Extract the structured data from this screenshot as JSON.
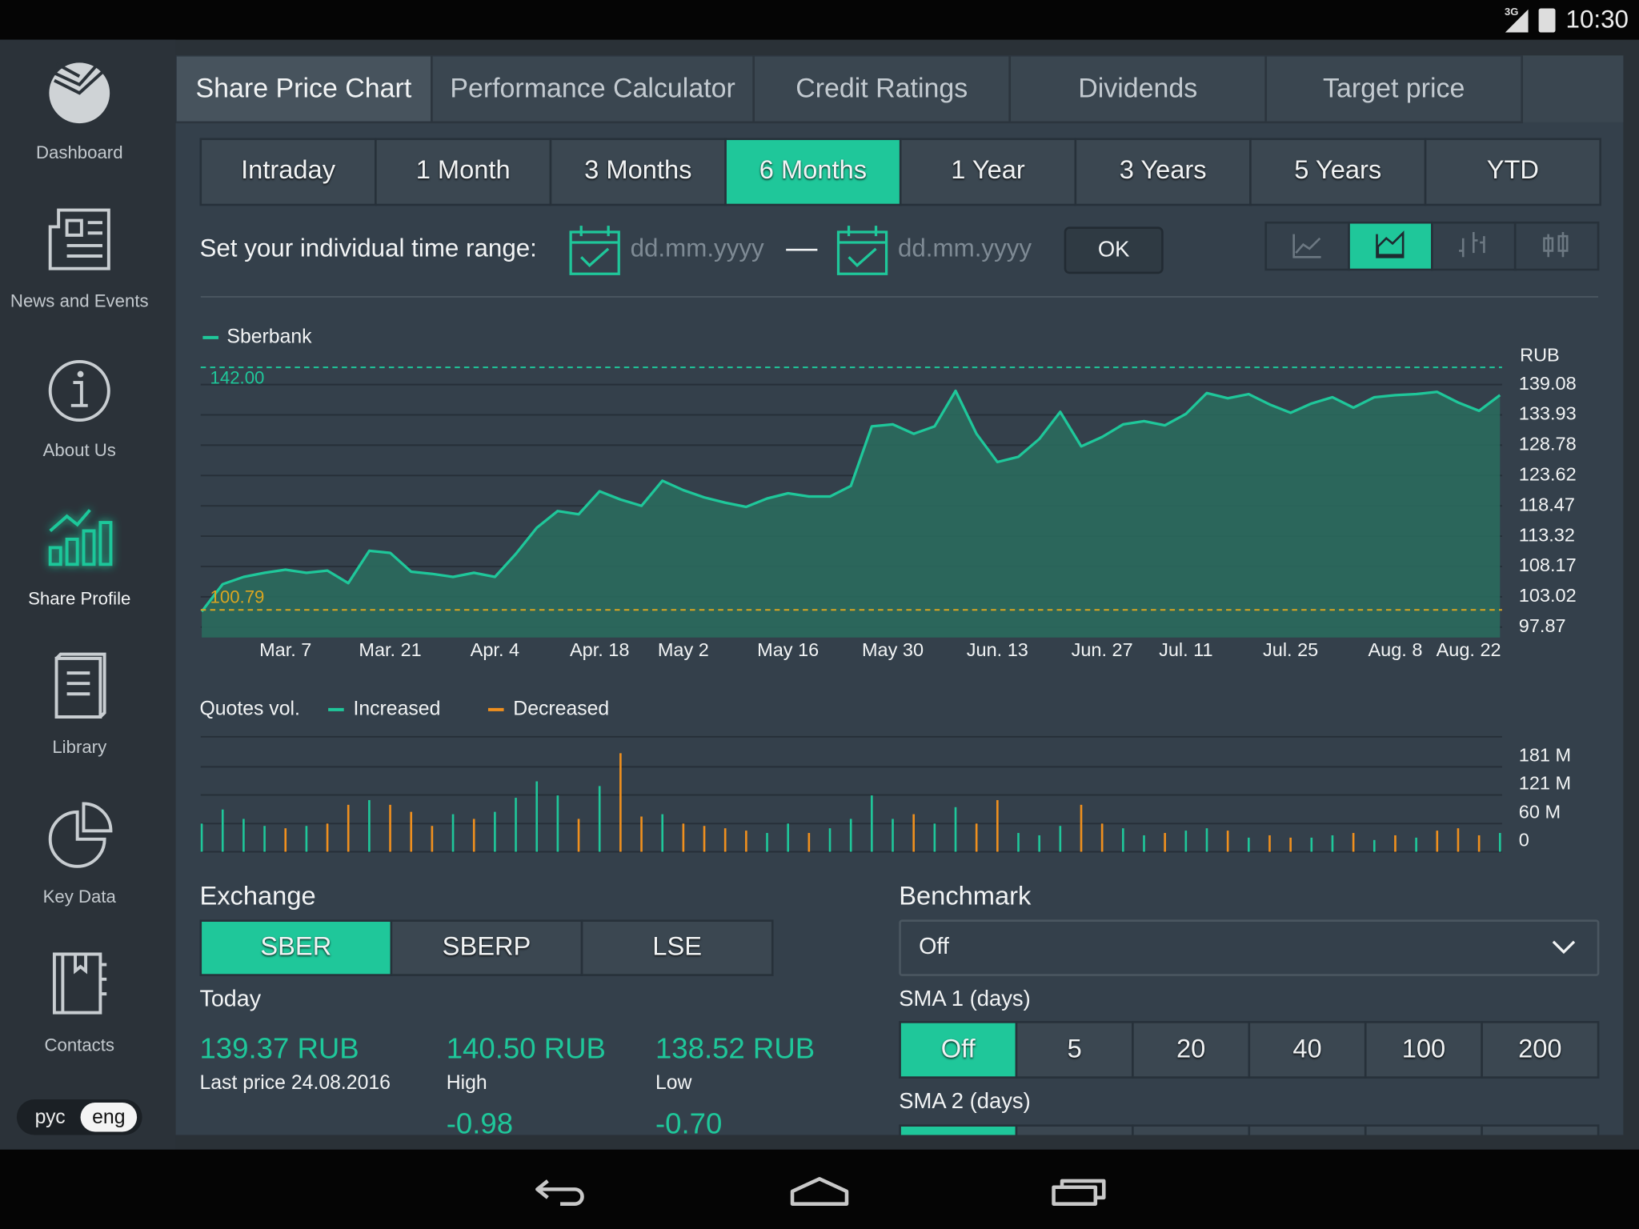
{
  "status_bar": {
    "network": "3G",
    "time": "10:30"
  },
  "sidebar": {
    "items": [
      {
        "label": "Dashboard",
        "active": false
      },
      {
        "label": "News and Events",
        "active": false
      },
      {
        "label": "About Us",
        "active": false
      },
      {
        "label": "Share Profile",
        "active": true
      },
      {
        "label": "Library",
        "active": false
      },
      {
        "label": "Key Data",
        "active": false
      },
      {
        "label": "Contacts",
        "active": false
      }
    ]
  },
  "language": {
    "items": [
      "рус",
      "eng"
    ],
    "selected": 1
  },
  "tabs": {
    "items": [
      "Share Price Chart",
      "Performance Calculator",
      "Credit Ratings",
      "Dividends",
      "Target price"
    ],
    "selected": 0
  },
  "periods": {
    "items": [
      "Intraday",
      "1 Month",
      "3 Months",
      "6 Months",
      "1 Year",
      "3 Years",
      "5 Years",
      "YTD"
    ],
    "selected": 3
  },
  "custom_range": {
    "label": "Set your individual time range:",
    "from_placeholder": "dd.mm.yyyy",
    "to_placeholder": "dd.mm.yyyy",
    "ok": "OK"
  },
  "chart_data": [
    {
      "type": "area",
      "y_unit": "RUB",
      "categories": [
        null,
        null,
        null,
        null,
        "Mar. 7",
        null,
        null,
        null,
        null,
        "Mar. 21",
        null,
        null,
        null,
        null,
        "Apr. 4",
        null,
        null,
        null,
        null,
        "Apr. 18",
        null,
        null,
        null,
        "May 2",
        null,
        null,
        null,
        null,
        "May 16",
        null,
        null,
        null,
        null,
        "May 30",
        null,
        null,
        null,
        null,
        "Jun. 13",
        null,
        null,
        null,
        null,
        "Jun. 27",
        null,
        null,
        null,
        "Jul. 11",
        null,
        null,
        null,
        null,
        "Jul. 25",
        null,
        null,
        null,
        null,
        "Aug. 8",
        null,
        null,
        null,
        "Aug. 22",
        null
      ],
      "series": [
        {
          "name": "Sberbank",
          "color": "#1fc79a",
          "values": [
            100.53,
            105.15,
            106.39,
            107.1,
            107.63,
            107.1,
            107.46,
            105.33,
            110.83,
            110.48,
            107.28,
            106.92,
            106.39,
            107.1,
            106.39,
            110.3,
            114.74,
            117.58,
            117.04,
            120.95,
            119.53,
            118.47,
            122.73,
            121.13,
            119.89,
            119.0,
            118.29,
            119.71,
            120.6,
            120.06,
            120.06,
            121.84,
            131.96,
            132.31,
            130.71,
            131.96,
            138.0,
            130.71,
            125.92,
            126.81,
            129.83,
            134.44,
            128.58,
            130.18,
            132.31,
            132.85,
            132.14,
            134.09,
            137.64,
            136.75,
            137.46,
            135.69,
            134.27,
            135.86,
            136.93,
            135.15,
            136.93,
            137.28,
            137.46,
            137.82,
            136.04,
            134.62,
            137.28
          ]
        }
      ],
      "ylim": [
        96.1,
        142.8
      ],
      "yticks": [
        139.08,
        133.93,
        128.78,
        123.62,
        118.47,
        113.32,
        108.17,
        103.02,
        97.87
      ],
      "grid": true,
      "max_line": {
        "value": 142,
        "label": "142.00",
        "color": "#1fc79a"
      },
      "min_line": {
        "value": 100.79,
        "label": "100.79",
        "color": "#d9a521"
      }
    },
    {
      "type": "bar",
      "title": "Quotes vol.",
      "series": [
        {
          "name": "Increased",
          "color": "#1fc79a",
          "values": [
            60,
            90,
            70,
            55,
            null,
            55,
            null,
            null,
            110,
            null,
            null,
            null,
            80,
            null,
            85,
            115,
            150,
            120,
            null,
            140,
            null,
            null,
            80,
            null,
            null,
            null,
            null,
            40,
            60,
            null,
            50,
            70,
            120,
            70,
            null,
            60,
            95,
            null,
            null,
            40,
            35,
            55,
            null,
            null,
            50,
            35,
            null,
            45,
            50,
            null,
            30,
            null,
            null,
            30,
            35,
            null,
            25,
            null,
            30,
            null,
            null,
            null,
            40
          ]
        },
        {
          "name": "Decreased",
          "color": "#f0901e",
          "values": [
            null,
            null,
            null,
            null,
            50,
            null,
            60,
            100,
            null,
            100,
            85,
            55,
            null,
            70,
            null,
            null,
            null,
            null,
            70,
            null,
            210,
            75,
            null,
            60,
            55,
            50,
            45,
            null,
            null,
            40,
            null,
            null,
            null,
            null,
            80,
            null,
            null,
            60,
            110,
            null,
            null,
            null,
            100,
            60,
            null,
            null,
            40,
            null,
            null,
            45,
            null,
            35,
            30,
            null,
            null,
            40,
            null,
            35,
            null,
            45,
            50,
            35,
            null
          ]
        }
      ],
      "ylim": [
        0,
        245
      ],
      "yticks": [
        {
          "value": 181,
          "label": "181 M"
        },
        {
          "value": 121,
          "label": "121 M"
        },
        {
          "value": 60,
          "label": "60 M"
        },
        0
      ],
      "grid": true
    }
  ],
  "exchange": {
    "title": "Exchange",
    "items": [
      "SBER",
      "SBERP",
      "LSE"
    ],
    "selected": 0
  },
  "today": {
    "title": "Today",
    "stats": [
      {
        "value": "139.37 RUB",
        "label": "Last price 24.08.2016"
      },
      {
        "value": "140.50 RUB",
        "label": "High",
        "change": "-0.98"
      },
      {
        "value": "138.52 RUB",
        "label": "Low",
        "change": "-0.70"
      }
    ]
  },
  "benchmark": {
    "title": "Benchmark",
    "selected": "Off"
  },
  "sma1": {
    "title": "SMA 1 (days)",
    "items": [
      "Off",
      "5",
      "20",
      "40",
      "100",
      "200"
    ],
    "selected": 0
  },
  "sma2": {
    "title": "SMA 2 (days)"
  }
}
